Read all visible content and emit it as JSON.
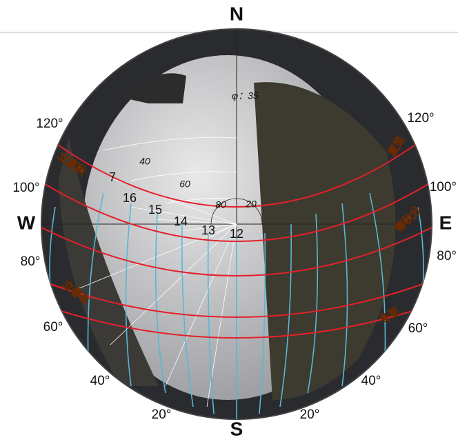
{
  "compass": {
    "north": "N",
    "south": "S",
    "east": "E",
    "west": "W"
  },
  "latitude": "φ：35",
  "azimuth_labels_left": [
    "120°",
    "100°",
    "80°",
    "60°",
    "40°",
    "20°"
  ],
  "azimuth_labels_right": [
    "120°",
    "100°",
    "80°",
    "60°",
    "40°",
    "20°"
  ],
  "hour_labels": [
    "7",
    "16",
    "15",
    "14",
    "13",
    "12"
  ],
  "altitude_labels": [
    "40",
    "60",
    "80",
    "20"
  ],
  "sun_path_labels": {
    "summer_solstice": "夏至",
    "equinox": "春秋分",
    "winter_solstice": "冬至",
    "early_summer_autumn": "立夏秋",
    "early_spring_winter": "立春冬"
  }
}
